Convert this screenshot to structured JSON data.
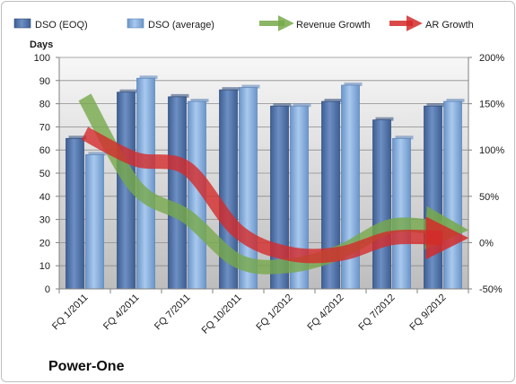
{
  "chart_data": {
    "type": "bar",
    "title": "Power-One",
    "ylabel": "Days",
    "ylim": [
      0,
      100
    ],
    "yticks": [
      0,
      10,
      20,
      30,
      40,
      50,
      60,
      70,
      80,
      90,
      100
    ],
    "y2lim": [
      -50,
      200
    ],
    "y2ticks": [
      "-50%",
      "0%",
      "50%",
      "100%",
      "150%",
      "200%"
    ],
    "y2tick_values": [
      -50,
      0,
      50,
      100,
      150,
      200
    ],
    "categories": [
      "FQ 1/2011",
      "FQ 4/2011",
      "FQ 7/2011",
      "FQ 10/2011",
      "FQ 1/2012",
      "FQ 4/2012",
      "FQ 7/2012",
      "FQ 9/2012"
    ],
    "series": [
      {
        "name": "DSO (EOQ)",
        "type": "bar",
        "axis": "left",
        "color": "#5a7bb0",
        "values": [
          65,
          85,
          83,
          86,
          79,
          81,
          73,
          79
        ]
      },
      {
        "name": "DSO (average)",
        "type": "bar",
        "axis": "left",
        "color": "#8db3e2",
        "values": [
          58,
          91,
          81,
          87,
          79,
          88,
          65,
          81
        ]
      },
      {
        "name": "Revenue Growth",
        "type": "line",
        "axis": "right",
        "color": "#77a94a",
        "values": [
          157,
          60,
          28,
          -20,
          -25,
          -10,
          18,
          15
        ]
      },
      {
        "name": "AR Growth",
        "type": "line",
        "axis": "right",
        "color": "#d42a2a",
        "values": [
          118,
          90,
          80,
          12,
          -12,
          -12,
          5,
          5
        ]
      }
    ],
    "legend": "top",
    "grid": true
  }
}
